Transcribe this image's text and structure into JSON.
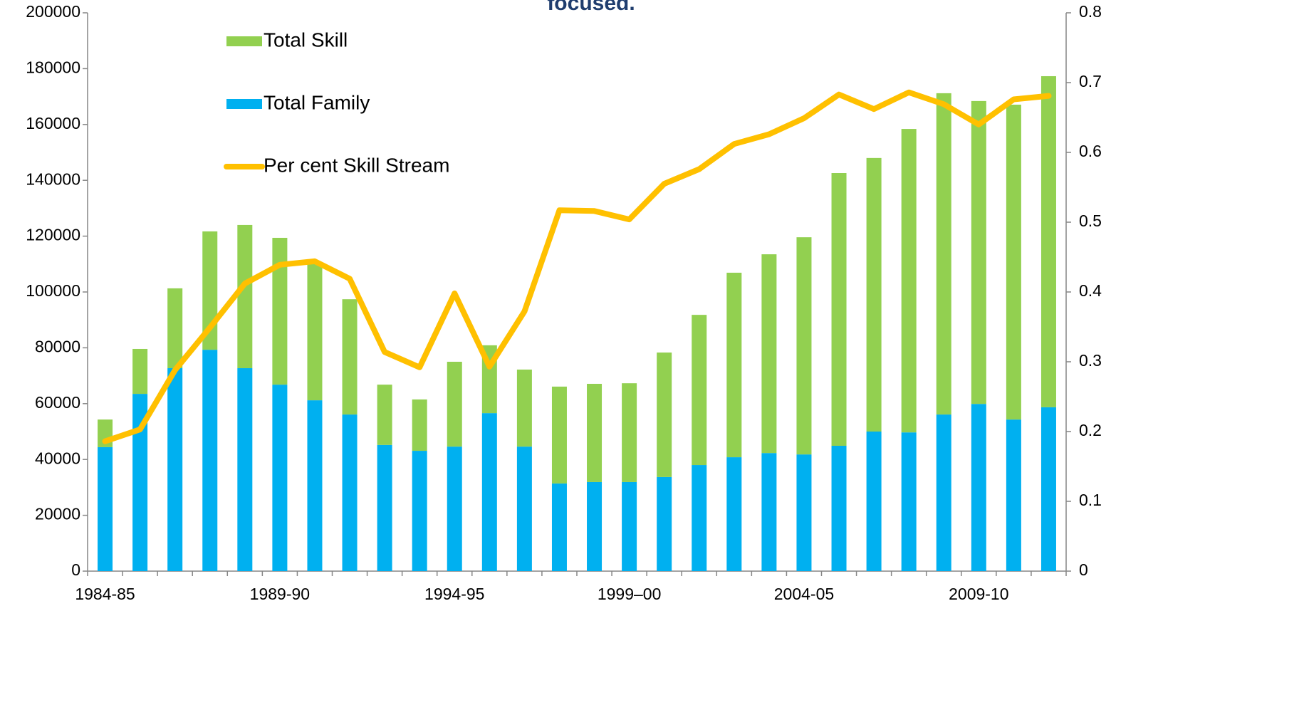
{
  "chart_data": {
    "type": "bar",
    "stacked": true,
    "title": "focused.",
    "categories": [
      "1984-85",
      null,
      null,
      null,
      null,
      "1989-90",
      null,
      null,
      null,
      null,
      "1994-95",
      null,
      null,
      null,
      null,
      "1999–00",
      null,
      null,
      null,
      null,
      "2004-05",
      null,
      null,
      null,
      null,
      "2009-10",
      null,
      null
    ],
    "series": [
      {
        "name": "Total Family",
        "color": "#00b0f0",
        "type": "bar",
        "values": [
          44400,
          63500,
          72700,
          79300,
          72700,
          66800,
          61200,
          56100,
          45200,
          43100,
          44600,
          56600,
          44600,
          31400,
          31900,
          31900,
          33700,
          38000,
          40800,
          42300,
          41800,
          44900,
          50000,
          49700,
          56100,
          59900,
          54300,
          58700
        ]
      },
      {
        "name": "Total Skill",
        "color": "#92d050",
        "type": "bar",
        "values": [
          9900,
          16100,
          28600,
          42400,
          51300,
          52600,
          49000,
          41300,
          21600,
          18400,
          30400,
          24300,
          27600,
          34700,
          35200,
          35400,
          44600,
          53800,
          66100,
          71200,
          77800,
          97700,
          98000,
          108700,
          115100,
          108500,
          112800,
          118600
        ]
      },
      {
        "name": "Per cent Skill Stream",
        "color": "#ffc000",
        "type": "line",
        "axis": "y2",
        "values": [
          0.186,
          0.203,
          0.288,
          0.349,
          0.412,
          0.439,
          0.444,
          0.419,
          0.314,
          0.292,
          0.398,
          0.293,
          0.372,
          0.517,
          0.516,
          0.504,
          0.555,
          0.576,
          0.612,
          0.626,
          0.649,
          0.683,
          0.662,
          0.686,
          0.669,
          0.64,
          0.676,
          0.681
        ]
      }
    ],
    "ylim": [
      0,
      200000
    ],
    "yticks": [
      0,
      20000,
      40000,
      60000,
      80000,
      100000,
      120000,
      140000,
      160000,
      180000,
      200000
    ],
    "y2lim": [
      0,
      0.8
    ],
    "y2ticks": [
      0,
      0.1,
      0.2,
      0.3,
      0.4,
      0.5,
      0.6,
      0.7,
      0.8
    ],
    "legend": "top-left",
    "grid": false
  }
}
